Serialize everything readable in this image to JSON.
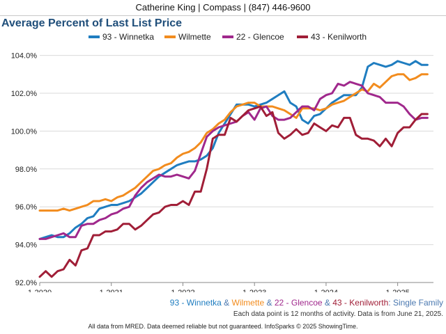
{
  "header": {
    "text": "Catherine King | Compass | (847) 446-9600"
  },
  "colors": {
    "winnetka": "#1f7dc0",
    "wilmette": "#f28c1e",
    "glencoe": "#a0288c",
    "kenilworth": "#a01e37",
    "subtitle_text": "#4a78b0",
    "title": "#1f4e7a"
  },
  "subtitle": {
    "winnetka": "93 - Winnetka",
    "amp1": " & ",
    "wilmette": "Wilmette",
    "amp2": " & ",
    "glencoe": "22 - Glencoe",
    "amp3": " & ",
    "kenilworth": "43 - Kenilworth",
    "suffix": ": Single Family"
  },
  "note": "Each data point is 12 months of activity. Data is from June 21, 2025.",
  "footer": "All data from MRED. Data deemed reliable but not guaranteed. InfoSparks © 2025 ShowingTime.",
  "chart_data": {
    "type": "line",
    "title": "Average Percent of Last List Price",
    "x_start": "2020-01",
    "x_ticks": [
      "1-2020",
      "1-2021",
      "1-2022",
      "1-2023",
      "1-2024",
      "1-2025"
    ],
    "y_ticks": [
      "92.0%",
      "94.0%",
      "96.0%",
      "98.0%",
      "100.0%",
      "102.0%",
      "104.0%"
    ],
    "ylim": [
      92,
      104.5
    ],
    "grid": true,
    "legend_position": "top",
    "series": [
      {
        "name": "93 - Winnetka",
        "color": "#1f7dc0",
        "values": [
          94.3,
          94.4,
          94.5,
          94.4,
          94.4,
          94.6,
          94.9,
          95.1,
          95.4,
          95.5,
          95.9,
          96.0,
          96.1,
          96.1,
          96.2,
          96.3,
          96.5,
          96.7,
          97.0,
          97.3,
          97.6,
          97.8,
          98.0,
          98.2,
          98.3,
          98.4,
          98.4,
          98.5,
          98.7,
          99.1,
          99.9,
          100.4,
          100.9,
          101.4,
          101.4,
          101.4,
          101.3,
          101.4,
          101.5,
          101.7,
          101.9,
          102.1,
          101.5,
          101.3,
          100.6,
          100.4,
          100.8,
          100.9,
          101.2,
          101.5,
          101.7,
          101.9,
          101.9,
          101.9,
          102.3,
          103.4,
          103.6,
          103.5,
          103.4,
          103.5,
          103.7,
          103.6,
          103.5,
          103.7,
          103.5,
          103.5
        ]
      },
      {
        "name": "Wilmette",
        "color": "#f28c1e",
        "values": [
          95.8,
          95.8,
          95.8,
          95.8,
          95.9,
          95.8,
          95.9,
          96.0,
          96.1,
          96.3,
          96.3,
          96.4,
          96.3,
          96.5,
          96.6,
          96.8,
          97.0,
          97.3,
          97.6,
          97.9,
          98.0,
          98.2,
          98.3,
          98.6,
          98.8,
          98.9,
          99.1,
          99.4,
          99.9,
          100.1,
          100.4,
          100.6,
          101.0,
          101.3,
          101.4,
          101.5,
          101.5,
          101.3,
          101.3,
          101.3,
          101.2,
          101.1,
          100.9,
          100.7,
          101.2,
          101.2,
          101.2,
          101.1,
          101.2,
          101.4,
          101.5,
          101.6,
          101.8,
          102.0,
          102.2,
          102.1,
          102.5,
          102.3,
          102.6,
          102.9,
          103.0,
          103.0,
          102.7,
          102.8,
          103.0,
          103.0
        ]
      },
      {
        "name": "22 - Glencoe",
        "color": "#a0288c",
        "values": [
          94.3,
          94.3,
          94.4,
          94.5,
          94.6,
          94.4,
          94.4,
          95.0,
          95.1,
          95.1,
          95.3,
          95.4,
          95.6,
          95.7,
          95.9,
          96.0,
          96.6,
          97.0,
          97.3,
          97.5,
          97.7,
          97.6,
          97.6,
          97.7,
          97.6,
          97.5,
          97.9,
          98.8,
          99.7,
          100.0,
          100.2,
          100.3,
          100.4,
          100.5,
          100.8,
          101.0,
          100.6,
          101.2,
          101.3,
          100.8,
          100.6,
          100.6,
          100.7,
          101.0,
          101.3,
          101.3,
          101.1,
          101.7,
          101.9,
          102.0,
          102.5,
          102.4,
          102.6,
          102.5,
          102.4,
          102.0,
          101.9,
          101.8,
          101.5,
          101.5,
          101.5,
          101.3,
          100.9,
          100.6,
          100.7,
          100.7
        ]
      },
      {
        "name": "43 - Kenilworth",
        "color": "#a01e37",
        "values": [
          92.3,
          92.6,
          92.3,
          92.6,
          92.7,
          93.2,
          92.9,
          93.7,
          93.8,
          94.5,
          94.5,
          94.7,
          94.7,
          94.8,
          95.1,
          95.1,
          94.8,
          95.0,
          95.3,
          95.6,
          95.7,
          96.0,
          96.1,
          96.1,
          96.3,
          96.1,
          96.8,
          96.8,
          98.0,
          99.6,
          99.8,
          99.8,
          100.7,
          100.5,
          100.8,
          101.1,
          101.2,
          101.3,
          100.8,
          101.0,
          99.9,
          99.6,
          99.8,
          100.1,
          99.8,
          99.9,
          100.4,
          100.2,
          100.0,
          100.3,
          100.2,
          100.7,
          100.7,
          99.8,
          99.6,
          99.6,
          99.5,
          99.2,
          99.6,
          99.2,
          99.9,
          100.2,
          100.2,
          100.6,
          100.9,
          100.9
        ]
      }
    ]
  }
}
